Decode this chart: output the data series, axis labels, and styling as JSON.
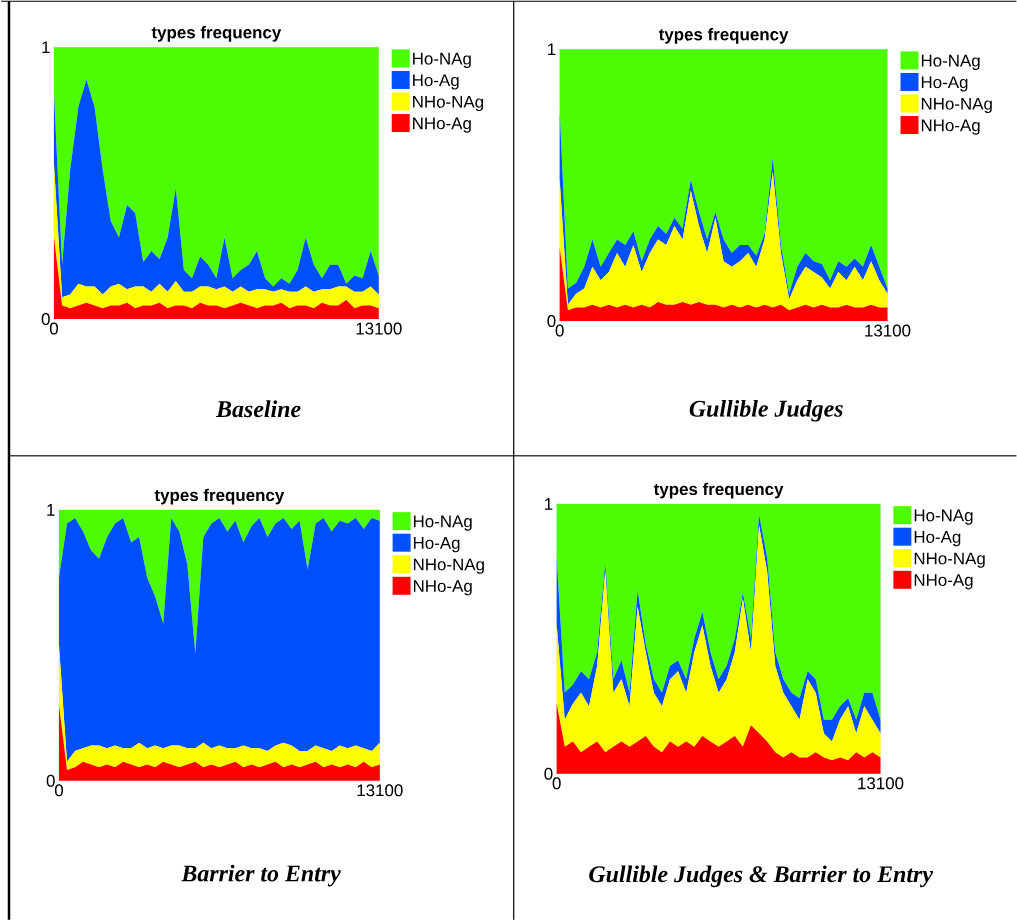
{
  "chart_data": [
    {
      "type": "area",
      "stacked": true,
      "title": "types frequency",
      "annotations": [
        "Baseline"
      ],
      "legend": "right",
      "xlim": [
        0,
        13100
      ],
      "ylim": [
        0,
        1
      ],
      "xticks": [
        0,
        13100
      ],
      "yticks": [
        0,
        1
      ],
      "x": [
        0,
        327.5,
        655,
        982.5,
        1310,
        1637.5,
        1965,
        2292.5,
        2620,
        2947.5,
        3275,
        3602.5,
        3930,
        4257.5,
        4585,
        4912.5,
        5240,
        5567.5,
        5895,
        6222.5,
        6550,
        6877.5,
        7205,
        7532.5,
        7860,
        8187.5,
        8515,
        8842.5,
        9170,
        9497.5,
        9825,
        10152.5,
        10480,
        10807.5,
        11135,
        11462.5,
        11790,
        12117.5,
        12445,
        12772.5,
        13100
      ],
      "series": [
        {
          "name": "NHo-Ag",
          "color": "#ff0000",
          "values": [
            0.3,
            0.05,
            0.04,
            0.05,
            0.06,
            0.05,
            0.04,
            0.05,
            0.05,
            0.06,
            0.04,
            0.05,
            0.05,
            0.06,
            0.04,
            0.05,
            0.05,
            0.04,
            0.06,
            0.05,
            0.05,
            0.04,
            0.05,
            0.06,
            0.05,
            0.04,
            0.05,
            0.05,
            0.06,
            0.04,
            0.05,
            0.05,
            0.04,
            0.06,
            0.05,
            0.05,
            0.07,
            0.04,
            0.05,
            0.05,
            0.04
          ]
        },
        {
          "name": "NHo-NAg",
          "color": "#ffff00",
          "values": [
            0.27,
            0.03,
            0.05,
            0.08,
            0.06,
            0.07,
            0.05,
            0.07,
            0.08,
            0.05,
            0.08,
            0.07,
            0.05,
            0.07,
            0.06,
            0.09,
            0.05,
            0.06,
            0.06,
            0.07,
            0.06,
            0.08,
            0.05,
            0.06,
            0.05,
            0.07,
            0.06,
            0.05,
            0.05,
            0.06,
            0.05,
            0.07,
            0.06,
            0.05,
            0.06,
            0.07,
            0.05,
            0.06,
            0.05,
            0.07,
            0.05
          ]
        },
        {
          "name": "Ho-Ag",
          "color": "#0050ff",
          "values": [
            0.26,
            0.12,
            0.46,
            0.65,
            0.76,
            0.66,
            0.46,
            0.24,
            0.17,
            0.31,
            0.27,
            0.09,
            0.15,
            0.09,
            0.2,
            0.34,
            0.08,
            0.05,
            0.11,
            0.08,
            0.04,
            0.18,
            0.05,
            0.06,
            0.1,
            0.14,
            0.04,
            0.02,
            0.04,
            0.03,
            0.08,
            0.18,
            0.1,
            0.04,
            0.09,
            0.08,
            0.01,
            0.06,
            0.05,
            0.13,
            0.07
          ]
        },
        {
          "name": "Ho-NAg",
          "color": "#4cfc00",
          "values": [
            0.17,
            0.8,
            0.45,
            0.22,
            0.12,
            0.22,
            0.45,
            0.64,
            0.7,
            0.58,
            0.61,
            0.79,
            0.75,
            0.78,
            0.7,
            0.52,
            0.82,
            0.85,
            0.77,
            0.8,
            0.85,
            0.7,
            0.85,
            0.82,
            0.8,
            0.75,
            0.85,
            0.88,
            0.85,
            0.87,
            0.82,
            0.7,
            0.8,
            0.85,
            0.8,
            0.8,
            0.87,
            0.84,
            0.85,
            0.75,
            0.84
          ]
        }
      ]
    },
    {
      "type": "area",
      "stacked": true,
      "title": "types frequency",
      "annotations": [
        "Gullible Judges"
      ],
      "legend": "right",
      "xlim": [
        0,
        13100
      ],
      "ylim": [
        0,
        1
      ],
      "xticks": [
        0,
        13100
      ],
      "yticks": [
        0,
        1
      ],
      "x": [
        0,
        327.5,
        655,
        982.5,
        1310,
        1637.5,
        1965,
        2292.5,
        2620,
        2947.5,
        3275,
        3602.5,
        3930,
        4257.5,
        4585,
        4912.5,
        5240,
        5567.5,
        5895,
        6222.5,
        6550,
        6877.5,
        7205,
        7532.5,
        7860,
        8187.5,
        8515,
        8842.5,
        9170,
        9497.5,
        9825,
        10152.5,
        10480,
        10807.5,
        11135,
        11462.5,
        11790,
        12117.5,
        12445,
        12772.5,
        13100
      ],
      "series": [
        {
          "name": "NHo-Ag",
          "color": "#ff0000",
          "values": [
            0.27,
            0.04,
            0.05,
            0.05,
            0.06,
            0.05,
            0.06,
            0.05,
            0.06,
            0.05,
            0.06,
            0.05,
            0.07,
            0.06,
            0.06,
            0.07,
            0.06,
            0.07,
            0.06,
            0.06,
            0.05,
            0.06,
            0.05,
            0.06,
            0.05,
            0.06,
            0.05,
            0.06,
            0.04,
            0.05,
            0.06,
            0.05,
            0.06,
            0.05,
            0.05,
            0.06,
            0.05,
            0.05,
            0.06,
            0.05,
            0.05
          ]
        },
        {
          "name": "NHo-NAg",
          "color": "#ffff00",
          "values": [
            0.25,
            0.02,
            0.05,
            0.07,
            0.14,
            0.1,
            0.12,
            0.2,
            0.14,
            0.23,
            0.12,
            0.2,
            0.23,
            0.22,
            0.29,
            0.23,
            0.42,
            0.28,
            0.19,
            0.32,
            0.17,
            0.14,
            0.17,
            0.19,
            0.15,
            0.24,
            0.5,
            0.19,
            0.04,
            0.1,
            0.14,
            0.13,
            0.1,
            0.07,
            0.13,
            0.09,
            0.15,
            0.1,
            0.16,
            0.1,
            0.05
          ]
        },
        {
          "name": "Ho-Ag",
          "color": "#0050ff",
          "values": [
            0.25,
            0.06,
            0.04,
            0.08,
            0.1,
            0.05,
            0.07,
            0.05,
            0.08,
            0.05,
            0.04,
            0.05,
            0.05,
            0.04,
            0.03,
            0.04,
            0.04,
            0.05,
            0.05,
            0.02,
            0.08,
            0.05,
            0.06,
            0.03,
            0.04,
            0.02,
            0.05,
            0.03,
            0.02,
            0.05,
            0.05,
            0.04,
            0.05,
            0.03,
            0.04,
            0.05,
            0.03,
            0.05,
            0.06,
            0.05,
            0.02
          ]
        },
        {
          "name": "Ho-NAg",
          "color": "#4cfc00",
          "values": [
            0.23,
            0.88,
            0.86,
            0.8,
            0.7,
            0.8,
            0.75,
            0.7,
            0.72,
            0.67,
            0.78,
            0.7,
            0.65,
            0.68,
            0.62,
            0.66,
            0.48,
            0.6,
            0.7,
            0.6,
            0.7,
            0.75,
            0.72,
            0.72,
            0.76,
            0.68,
            0.4,
            0.72,
            0.9,
            0.8,
            0.75,
            0.78,
            0.79,
            0.85,
            0.78,
            0.8,
            0.77,
            0.8,
            0.72,
            0.8,
            0.88
          ]
        }
      ]
    },
    {
      "type": "area",
      "stacked": true,
      "title": "types frequency",
      "annotations": [
        "Barrier to Entry"
      ],
      "legend": "right",
      "xlim": [
        0,
        13100
      ],
      "ylim": [
        0,
        1
      ],
      "xticks": [
        0,
        13100
      ],
      "yticks": [
        0,
        1
      ],
      "x": [
        0,
        327.5,
        655,
        982.5,
        1310,
        1637.5,
        1965,
        2292.5,
        2620,
        2947.5,
        3275,
        3602.5,
        3930,
        4257.5,
        4585,
        4912.5,
        5240,
        5567.5,
        5895,
        6222.5,
        6550,
        6877.5,
        7205,
        7532.5,
        7860,
        8187.5,
        8515,
        8842.5,
        9170,
        9497.5,
        9825,
        10152.5,
        10480,
        10807.5,
        11135,
        11462.5,
        11790,
        12117.5,
        12445,
        12772.5,
        13100
      ],
      "series": [
        {
          "name": "NHo-Ag",
          "color": "#ff0000",
          "values": [
            0.28,
            0.04,
            0.05,
            0.07,
            0.06,
            0.05,
            0.06,
            0.05,
            0.07,
            0.06,
            0.05,
            0.06,
            0.05,
            0.07,
            0.06,
            0.05,
            0.06,
            0.07,
            0.05,
            0.06,
            0.05,
            0.06,
            0.07,
            0.05,
            0.06,
            0.05,
            0.06,
            0.07,
            0.05,
            0.06,
            0.05,
            0.06,
            0.07,
            0.05,
            0.06,
            0.05,
            0.06,
            0.05,
            0.07,
            0.05,
            0.06
          ]
        },
        {
          "name": "NHo-NAg",
          "color": "#ffff00",
          "values": [
            0.22,
            0.03,
            0.06,
            0.05,
            0.07,
            0.08,
            0.06,
            0.08,
            0.05,
            0.06,
            0.09,
            0.06,
            0.08,
            0.05,
            0.07,
            0.08,
            0.06,
            0.05,
            0.09,
            0.06,
            0.08,
            0.06,
            0.05,
            0.08,
            0.06,
            0.07,
            0.05,
            0.06,
            0.09,
            0.07,
            0.06,
            0.05,
            0.06,
            0.07,
            0.05,
            0.08,
            0.06,
            0.08,
            0.05,
            0.06,
            0.08
          ]
        },
        {
          "name": "Ho-Ag",
          "color": "#0050ff",
          "values": [
            0.25,
            0.88,
            0.86,
            0.8,
            0.72,
            0.69,
            0.78,
            0.82,
            0.85,
            0.76,
            0.76,
            0.63,
            0.55,
            0.46,
            0.84,
            0.79,
            0.68,
            0.35,
            0.76,
            0.83,
            0.84,
            0.8,
            0.84,
            0.75,
            0.82,
            0.85,
            0.79,
            0.82,
            0.83,
            0.8,
            0.85,
            0.67,
            0.82,
            0.85,
            0.81,
            0.83,
            0.83,
            0.84,
            0.81,
            0.86,
            0.82
          ]
        },
        {
          "name": "Ho-NAg",
          "color": "#4cfc00",
          "values": [
            0.25,
            0.05,
            0.03,
            0.08,
            0.15,
            0.18,
            0.1,
            0.05,
            0.03,
            0.12,
            0.1,
            0.25,
            0.32,
            0.42,
            0.03,
            0.08,
            0.2,
            0.53,
            0.1,
            0.05,
            0.03,
            0.08,
            0.04,
            0.12,
            0.06,
            0.03,
            0.1,
            0.05,
            0.03,
            0.07,
            0.04,
            0.22,
            0.05,
            0.03,
            0.08,
            0.04,
            0.05,
            0.03,
            0.07,
            0.03,
            0.04
          ]
        }
      ]
    },
    {
      "type": "area",
      "stacked": true,
      "title": "types frequency",
      "annotations": [
        "Gullible Judges & Barrier to Entry"
      ],
      "legend": "right",
      "xlim": [
        0,
        13100
      ],
      "ylim": [
        0,
        1
      ],
      "xticks": [
        0,
        13100
      ],
      "yticks": [
        0,
        1
      ],
      "x": [
        0,
        327.5,
        655,
        982.5,
        1310,
        1637.5,
        1965,
        2292.5,
        2620,
        2947.5,
        3275,
        3602.5,
        3930,
        4257.5,
        4585,
        4912.5,
        5240,
        5567.5,
        5895,
        6222.5,
        6550,
        6877.5,
        7205,
        7532.5,
        7860,
        8187.5,
        8515,
        8842.5,
        9170,
        9497.5,
        9825,
        10152.5,
        10480,
        10807.5,
        11135,
        11462.5,
        11790,
        12117.5,
        12445,
        12772.5,
        13100
      ],
      "series": [
        {
          "name": "NHo-Ag",
          "color": "#ff0000",
          "values": [
            0.26,
            0.1,
            0.12,
            0.08,
            0.1,
            0.12,
            0.08,
            0.1,
            0.12,
            0.1,
            0.12,
            0.14,
            0.1,
            0.08,
            0.12,
            0.1,
            0.12,
            0.1,
            0.14,
            0.12,
            0.1,
            0.12,
            0.14,
            0.1,
            0.18,
            0.15,
            0.12,
            0.08,
            0.06,
            0.08,
            0.06,
            0.06,
            0.08,
            0.06,
            0.05,
            0.06,
            0.05,
            0.08,
            0.06,
            0.08,
            0.06
          ]
        },
        {
          "name": "NHo-NAg",
          "color": "#ffff00",
          "values": [
            0.29,
            0.1,
            0.14,
            0.22,
            0.15,
            0.28,
            0.67,
            0.2,
            0.23,
            0.15,
            0.5,
            0.31,
            0.2,
            0.17,
            0.23,
            0.28,
            0.18,
            0.35,
            0.41,
            0.28,
            0.2,
            0.23,
            0.31,
            0.55,
            0.27,
            0.77,
            0.63,
            0.32,
            0.24,
            0.17,
            0.14,
            0.29,
            0.22,
            0.09,
            0.07,
            0.14,
            0.2,
            0.07,
            0.19,
            0.12,
            0.09
          ]
        },
        {
          "name": "Ho-Ag",
          "color": "#0050ff",
          "values": [
            0.25,
            0.1,
            0.07,
            0.08,
            0.1,
            0.05,
            0.03,
            0.05,
            0.07,
            0.05,
            0.06,
            0.03,
            0.05,
            0.05,
            0.05,
            0.04,
            0.05,
            0.05,
            0.05,
            0.05,
            0.05,
            0.05,
            0.05,
            0.02,
            0.05,
            0.04,
            0.05,
            0.05,
            0.05,
            0.05,
            0.08,
            0.03,
            0.05,
            0.05,
            0.08,
            0.05,
            0.03,
            0.05,
            0.05,
            0.1,
            0.05
          ]
        },
        {
          "name": "Ho-NAg",
          "color": "#4cfc00",
          "values": [
            0.2,
            0.7,
            0.67,
            0.62,
            0.65,
            0.55,
            0.22,
            0.65,
            0.58,
            0.7,
            0.32,
            0.52,
            0.65,
            0.7,
            0.6,
            0.58,
            0.65,
            0.5,
            0.4,
            0.55,
            0.65,
            0.6,
            0.5,
            0.33,
            0.5,
            0.04,
            0.2,
            0.55,
            0.65,
            0.7,
            0.72,
            0.62,
            0.65,
            0.8,
            0.8,
            0.75,
            0.72,
            0.8,
            0.7,
            0.7,
            0.8
          ]
        }
      ]
    }
  ]
}
